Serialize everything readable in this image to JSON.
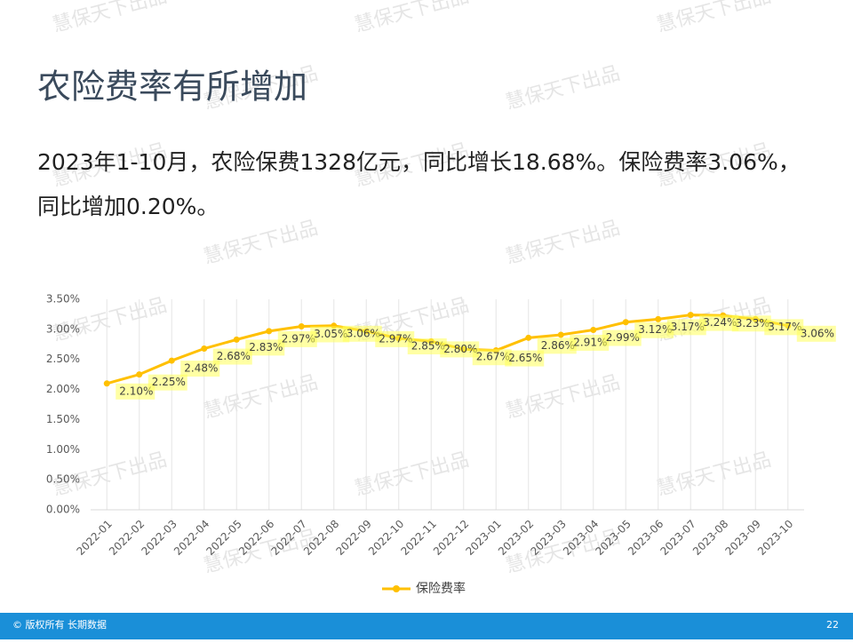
{
  "header": {
    "title": "农险费率有所增加"
  },
  "body": {
    "lines": [
      "2023年1-10月，农险保费1328亿元，同比增长18.68%。保险费率3.06%，",
      "同比增加0.20%。"
    ]
  },
  "watermark": "慧保天下出品",
  "footer": {
    "copyright": "© 版权所有 长期数据",
    "page": "22"
  },
  "chart_data": {
    "type": "line",
    "categories": [
      "2022-01",
      "2022-02",
      "2022-03",
      "2022-04",
      "2022-05",
      "2022-06",
      "2022-07",
      "2022-08",
      "2022-09",
      "2022-10",
      "2022-11",
      "2022-12",
      "2023-01",
      "2023-02",
      "2023-03",
      "2023-04",
      "2023-05",
      "2023-06",
      "2023-07",
      "2023-08",
      "2023-09",
      "2023-10"
    ],
    "series": [
      {
        "name": "保险费率",
        "color": "#FFC000",
        "values": [
          2.1,
          2.25,
          2.48,
          2.68,
          2.83,
          2.97,
          3.05,
          3.06,
          2.97,
          2.85,
          2.8,
          2.67,
          2.65,
          2.86,
          2.91,
          2.99,
          3.12,
          3.17,
          3.24,
          3.23,
          3.17,
          3.06
        ],
        "value_labels": [
          "2.10%",
          "2.25%",
          "2.48%",
          "2.68%",
          "2.83%",
          "2.97%",
          "3.05%",
          "3.06%",
          "2.97%",
          "2.85%",
          "2.80%",
          "2.67%",
          "2.65%",
          "2.86%",
          "2.91%",
          "2.99%",
          "3.12%",
          "3.17%",
          "3.24%",
          "3.23%",
          "3.17%",
          "3.06%"
        ]
      }
    ],
    "ylim": [
      0,
      3.5
    ],
    "yticks": [
      {
        "value": 0,
        "label": "0.00%"
      },
      {
        "value": 0.5,
        "label": "0.50%"
      },
      {
        "value": 1,
        "label": "1.00%"
      },
      {
        "value": 1.5,
        "label": "1.50%"
      },
      {
        "value": 2,
        "label": "2.00%"
      },
      {
        "value": 2.5,
        "label": "2.50%"
      },
      {
        "value": 3,
        "label": "3.00%"
      },
      {
        "value": 3.5,
        "label": "3.50%"
      }
    ],
    "legend": "bottom"
  }
}
